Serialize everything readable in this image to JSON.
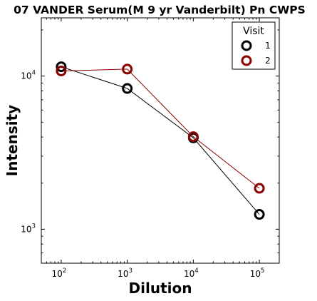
{
  "chart_data": {
    "type": "line",
    "title": "07 VANDER Serum(M 9 yr Vanderbilt) Pn CWPS",
    "xlabel": "Dilution",
    "ylabel": "Intensity",
    "x_scale": "log",
    "y_scale": "log",
    "xlim": [
      50,
      200000
    ],
    "ylim": [
      600,
      24000
    ],
    "x_ticks": [
      {
        "value": 100,
        "base": "10",
        "exp": "2"
      },
      {
        "value": 1000,
        "base": "10",
        "exp": "3"
      },
      {
        "value": 10000,
        "base": "10",
        "exp": "4"
      },
      {
        "value": 100000,
        "base": "10",
        "exp": "5"
      }
    ],
    "y_ticks": [
      {
        "value": 1000,
        "base": "10",
        "exp": "3"
      },
      {
        "value": 10000,
        "base": "10",
        "exp": "4"
      }
    ],
    "grid": false,
    "legend": {
      "title": "Visit",
      "position": "top-right"
    },
    "series": [
      {
        "name": "1",
        "color": "#000000",
        "x": [
          100,
          1000,
          10000,
          100000
        ],
        "y": [
          11500,
          8300,
          3950,
          1250
        ]
      },
      {
        "name": "2",
        "color": "#8b0000",
        "x": [
          100,
          1000,
          10000,
          100000
        ],
        "y": [
          10800,
          11100,
          4020,
          1850
        ]
      }
    ]
  }
}
